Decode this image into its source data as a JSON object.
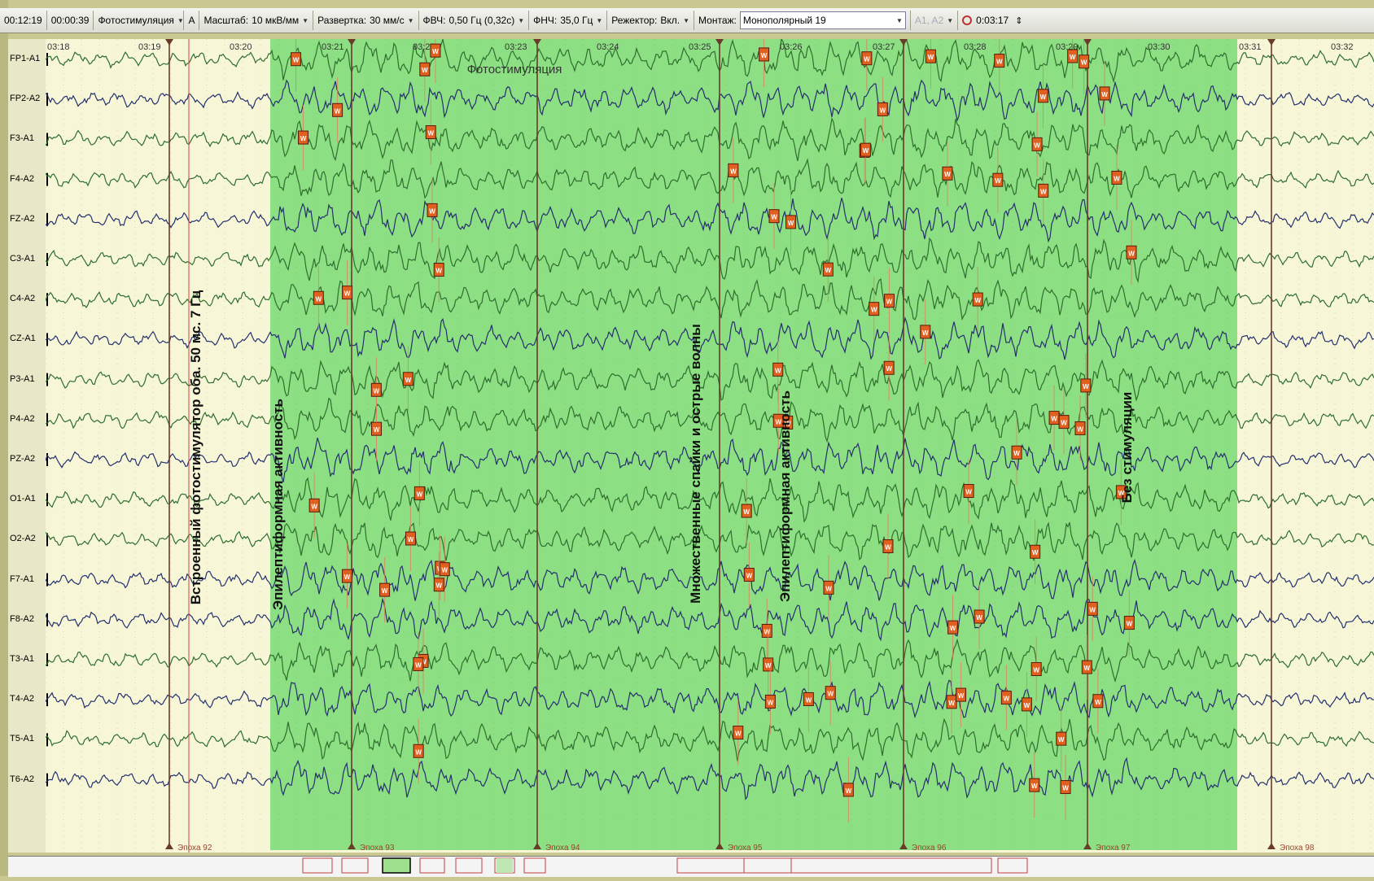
{
  "toolbar": {
    "time_elapsed": "00:12:19",
    "time_segment": "00:00:39",
    "mode": "Фотостимуляция",
    "a_button": "A",
    "scale_label": "Масштаб:",
    "scale_value": "10 мкВ/мм",
    "sweep_label": "Развертка:",
    "sweep_value": "30 мм/с",
    "hpf_label": "ФВЧ:",
    "hpf_value": "0,50 Гц (0,32с)",
    "lpf_label": "ФНЧ:",
    "lpf_value": "35,0 Гц",
    "notch_label": "Режектор:",
    "notch_value": "Вкл.",
    "montage_label": "Монтаж:",
    "montage_value": "Монополярный 19",
    "reference": "A1, A2",
    "duration": "0:03:17"
  },
  "channels": [
    "FP1-A1",
    "FP2-A2",
    "F3-A1",
    "F4-A2",
    "FZ-A2",
    "C3-A1",
    "C4-A2",
    "CZ-A1",
    "P3-A1",
    "P4-A2",
    "PZ-A2",
    "O1-A1",
    "O2-A2",
    "F7-A1",
    "F8-A2",
    "T3-A1",
    "T4-A2",
    "T5-A1",
    "T6-A2"
  ],
  "time_marks": [
    "03:18",
    "03:19",
    "03:20",
    "03:21",
    "03:22",
    "03:23",
    "03:24",
    "03:25",
    "03:26",
    "03:27",
    "03:28",
    "03:29",
    "03:30",
    "03:31",
    "03:32"
  ],
  "epochs": [
    "Эпоха 92",
    "Эпоха 93",
    "Эпоха 94",
    "Эпоха 95",
    "Эпоха 96",
    "Эпоха 97",
    "Эпоха 98"
  ],
  "annotations": {
    "stim_top": "Фотостимуляция",
    "builtin_stim": "Встроенный фотостимулятор оба. 50 мс. 7 Гц",
    "epi_1": "Эпилептиформная активность",
    "spikes": "Множественные спайки и острые волны",
    "epi_2": "Эпилептиформная активность",
    "stim_end": "Без стимуляции"
  },
  "marker_glyph": "W",
  "colors": {
    "background": "#f7f7d8",
    "stim_zone": "#8cdf82",
    "trace_green": "#2f6e2f",
    "trace_blue": "#25306e",
    "marker": "#e06020",
    "marker_line": "#e08060"
  }
}
